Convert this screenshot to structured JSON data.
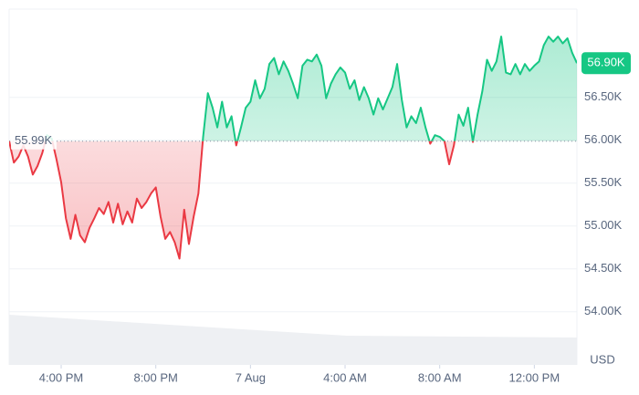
{
  "chart_data": {
    "type": "line",
    "x": [
      13.8,
      14,
      14.2,
      14.4,
      14.6,
      14.8,
      15,
      15.2,
      15.4,
      15.6,
      15.8,
      16,
      16.2,
      16.4,
      16.6,
      16.8,
      17,
      17.2,
      17.4,
      17.6,
      17.8,
      18,
      18.2,
      18.4,
      18.6,
      18.8,
      19,
      19.2,
      19.4,
      19.6,
      19.8,
      20,
      20.2,
      20.4,
      20.6,
      20.8,
      21,
      21.2,
      21.4,
      21.6,
      21.8,
      22,
      22.2,
      22.4,
      22.6,
      22.8,
      23,
      23.2,
      23.4,
      23.6,
      23.8,
      24,
      24.2,
      24.4,
      24.6,
      24.8,
      25,
      25.2,
      25.4,
      25.6,
      25.8,
      26,
      26.2,
      26.4,
      26.6,
      26.8,
      27,
      27.2,
      27.4,
      27.6,
      27.8,
      28,
      28.2,
      28.4,
      28.6,
      28.8,
      29,
      29.2,
      29.4,
      29.6,
      29.8,
      30,
      30.2,
      30.4,
      30.6,
      30.8,
      31,
      31.2,
      31.4,
      31.6,
      31.8,
      32,
      32.2,
      32.4,
      32.6,
      32.8,
      33,
      33.2,
      33.4,
      33.6,
      33.8,
      34,
      34.2,
      34.4,
      34.6,
      34.8,
      35,
      35.2,
      35.4,
      35.6,
      35.8,
      36,
      36.2,
      36.4,
      36.6,
      36.8,
      37,
      37.2,
      37.4,
      37.6,
      37.8
    ],
    "values": [
      55990,
      55740,
      55810,
      55940,
      55810,
      55600,
      55700,
      55850,
      56060,
      56020,
      55780,
      55510,
      55090,
      54850,
      55130,
      54890,
      54810,
      54980,
      55090,
      55210,
      55140,
      55280,
      55040,
      55260,
      55020,
      55170,
      55040,
      55320,
      55210,
      55280,
      55380,
      55450,
      55110,
      54850,
      54930,
      54810,
      54620,
      55190,
      54790,
      55110,
      55380,
      56040,
      56550,
      56380,
      56150,
      56450,
      56150,
      56280,
      55940,
      56150,
      56380,
      56450,
      56700,
      56490,
      56600,
      56890,
      56960,
      56770,
      56920,
      56810,
      56660,
      56490,
      56870,
      56940,
      56920,
      57000,
      56870,
      56490,
      56660,
      56770,
      56850,
      56790,
      56600,
      56700,
      56470,
      56620,
      56490,
      56300,
      56490,
      56360,
      56490,
      56620,
      56890,
      56470,
      56150,
      56280,
      56200,
      56380,
      56150,
      55960,
      56060,
      56040,
      55990,
      55720,
      55940,
      56300,
      56170,
      56380,
      55980,
      56300,
      56570,
      56940,
      56810,
      56920,
      57210,
      56790,
      56770,
      56890,
      56770,
      56890,
      56810,
      56870,
      56920,
      57110,
      57210,
      57150,
      57210,
      57130,
      57190,
      57020,
      56900
    ],
    "up_color": "#16c784",
    "down_color": "#ea3943",
    "baseline": {
      "value": 55990,
      "label": "55.99K"
    },
    "current_price": {
      "value": 56900,
      "label": "56.90K"
    },
    "y_unit": "USD",
    "xlim": [
      13.8,
      37.8
    ],
    "xticks": [
      {
        "value": 16,
        "label": "4:00 PM"
      },
      {
        "value": 20,
        "label": "8:00 PM"
      },
      {
        "value": 24,
        "label": "7 Aug"
      },
      {
        "value": 28,
        "label": "4:00 AM"
      },
      {
        "value": 32,
        "label": "8:00 AM"
      },
      {
        "value": 36,
        "label": "12:00 PM"
      }
    ],
    "ylim": [
      53380,
      57530
    ],
    "yticks": [
      {
        "value": 54000,
        "label": "54.00K"
      },
      {
        "value": 54500,
        "label": "54.50K"
      },
      {
        "value": 55000,
        "label": "55.00K"
      },
      {
        "value": 55500,
        "label": "55.50K"
      },
      {
        "value": 56000,
        "label": "56.00K"
      },
      {
        "value": 56500,
        "label": "56.50K"
      }
    ],
    "grid": true
  }
}
